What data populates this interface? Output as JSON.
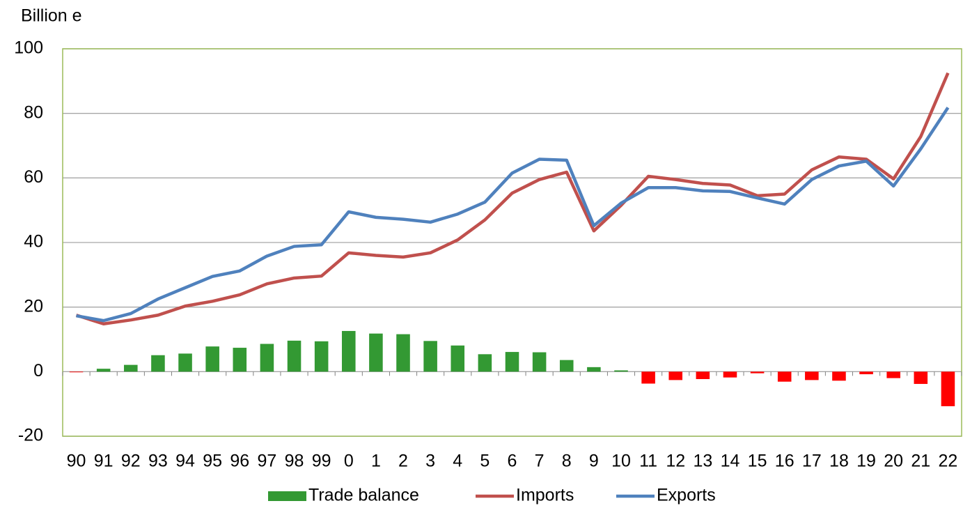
{
  "chart_data": {
    "type": "combo",
    "ylabel": "Billion e",
    "categories": [
      "90",
      "91",
      "92",
      "93",
      "94",
      "95",
      "96",
      "97",
      "98",
      "99",
      "0",
      "1",
      "2",
      "3",
      "4",
      "5",
      "6",
      "7",
      "8",
      "9",
      "10",
      "11",
      "12",
      "13",
      "14",
      "15",
      "16",
      "17",
      "18",
      "19",
      "20",
      "21",
      "22"
    ],
    "series": [
      {
        "name": "Trade balance",
        "type": "bar",
        "color": "#339933",
        "negative_color": "#ff0000",
        "values": [
          -0.2,
          0.9,
          2.1,
          5.1,
          5.6,
          7.8,
          7.4,
          8.6,
          9.6,
          9.4,
          12.6,
          11.8,
          11.6,
          9.5,
          8.1,
          5.4,
          6.1,
          6.0,
          3.6,
          1.4,
          0.4,
          -3.7,
          -2.6,
          -2.3,
          -1.8,
          -0.5,
          -3.1,
          -2.6,
          -2.8,
          -0.8,
          -2.0,
          -3.8,
          -10.7
        ]
      },
      {
        "name": "Imports",
        "type": "line",
        "color": "#c0504d",
        "values": [
          17.5,
          14.8,
          16,
          17.5,
          20.3,
          21.8,
          23.8,
          27.2,
          29,
          29.6,
          36.8,
          36,
          35.5,
          36.8,
          40.8,
          47,
          55.3,
          59.5,
          61.8,
          43.6,
          51.5,
          60.5,
          59.5,
          58.3,
          57.8,
          54.5,
          55,
          62.5,
          66.5,
          65.8,
          59.7,
          72.8,
          92.5
        ]
      },
      {
        "name": "Exports",
        "type": "line",
        "color": "#4f81bd",
        "values": [
          17.3,
          15.8,
          18,
          22.5,
          26,
          29.5,
          31.2,
          35.8,
          38.8,
          39.3,
          49.5,
          47.8,
          47.2,
          46.3,
          48.8,
          52.5,
          61.5,
          65.8,
          65.5,
          45.2,
          52.2,
          57,
          57,
          56,
          55.8,
          53.8,
          51.9,
          59.5,
          63.7,
          65.2,
          57.5,
          69,
          81.8
        ]
      }
    ],
    "ylim": [
      -20,
      100
    ],
    "yticks": [
      -20,
      0,
      20,
      40,
      60,
      80,
      100
    ],
    "grid": true,
    "legend": "bottom"
  }
}
